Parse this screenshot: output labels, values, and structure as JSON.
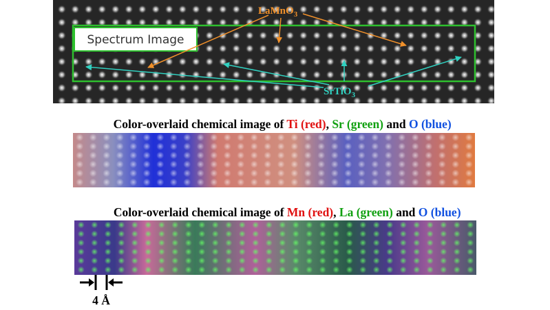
{
  "stem_image": {
    "label_lamno3": "LaMnO",
    "label_lamno3_sub": "3",
    "label_srtio3": "SrTiO",
    "label_srtio3_sub": "3",
    "region_label": "Spectrum Image"
  },
  "caption_1": {
    "prefix": "Color-overlaid chemical image of ",
    "red": "Ti (red)",
    "sep": ", ",
    "green": "Sr (green)",
    "and": " and ",
    "blue": "O (blue)"
  },
  "caption_2": {
    "prefix": "Color-overlaid chemical image of ",
    "red": "Mn (red)",
    "sep": ", ",
    "green": "La (green)",
    "and": " and ",
    "blue": "O (blue)"
  },
  "scale_bar": {
    "label": "4 Å"
  }
}
